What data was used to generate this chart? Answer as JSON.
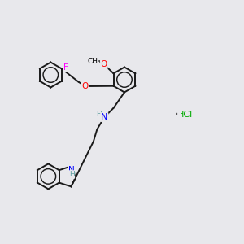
{
  "background_color": "#e8e8ec",
  "atom_colors": {
    "F": "#ff00ff",
    "O": "#ff0000",
    "N": "#0000ff",
    "H": "#5f9ea0",
    "C": "#000000",
    "Cl": "#00aa00"
  },
  "bond_color": "#1a1a1a",
  "bond_width": 1.4,
  "figsize": [
    3.0,
    3.0
  ],
  "dpi": 100
}
